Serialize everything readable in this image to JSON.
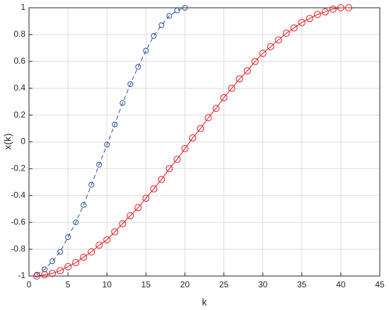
{
  "chart_data": {
    "type": "line",
    "xlabel": "k",
    "ylabel": "x(k)",
    "xlim": [
      0,
      45
    ],
    "xticks": [
      0,
      5,
      10,
      15,
      20,
      25,
      30,
      35,
      40,
      45
    ],
    "ylim": [
      -1,
      1
    ],
    "yticks": [
      -1,
      -0.8,
      -0.6,
      -0.4,
      -0.2,
      0,
      0.2,
      0.4,
      0.6,
      0.8,
      1
    ],
    "grid": true,
    "series": [
      {
        "color": "#2b4ea2",
        "linestyle": "dashed",
        "marker": "circle",
        "x": [
          1,
          2,
          3,
          4,
          5,
          6,
          7,
          8,
          9,
          10,
          11,
          12,
          13,
          14,
          15,
          16,
          17,
          18,
          19,
          20
        ],
        "values": [
          -0.99,
          -0.95,
          -0.89,
          -0.82,
          -0.71,
          -0.6,
          -0.47,
          -0.32,
          -0.17,
          -0.02,
          0.13,
          0.29,
          0.43,
          0.56,
          0.68,
          0.79,
          0.87,
          0.94,
          0.98,
          1.0
        ]
      },
      {
        "color": "#e0191e",
        "linestyle": "solid",
        "marker": "circle",
        "x": [
          1,
          2,
          3,
          4,
          5,
          6,
          7,
          8,
          9,
          10,
          11,
          12,
          13,
          14,
          15,
          16,
          17,
          18,
          19,
          20,
          21,
          22,
          23,
          24,
          25,
          26,
          27,
          28,
          29,
          30,
          31,
          32,
          33,
          34,
          35,
          36,
          37,
          38,
          39,
          40,
          41
        ],
        "values": [
          -1.0,
          -0.99,
          -0.98,
          -0.96,
          -0.93,
          -0.9,
          -0.86,
          -0.82,
          -0.77,
          -0.73,
          -0.67,
          -0.61,
          -0.55,
          -0.49,
          -0.42,
          -0.35,
          -0.28,
          -0.2,
          -0.13,
          -0.05,
          0.03,
          0.1,
          0.18,
          0.25,
          0.33,
          0.4,
          0.47,
          0.53,
          0.6,
          0.66,
          0.71,
          0.76,
          0.81,
          0.85,
          0.89,
          0.92,
          0.95,
          0.97,
          0.99,
          1.0,
          1.0
        ]
      }
    ]
  }
}
